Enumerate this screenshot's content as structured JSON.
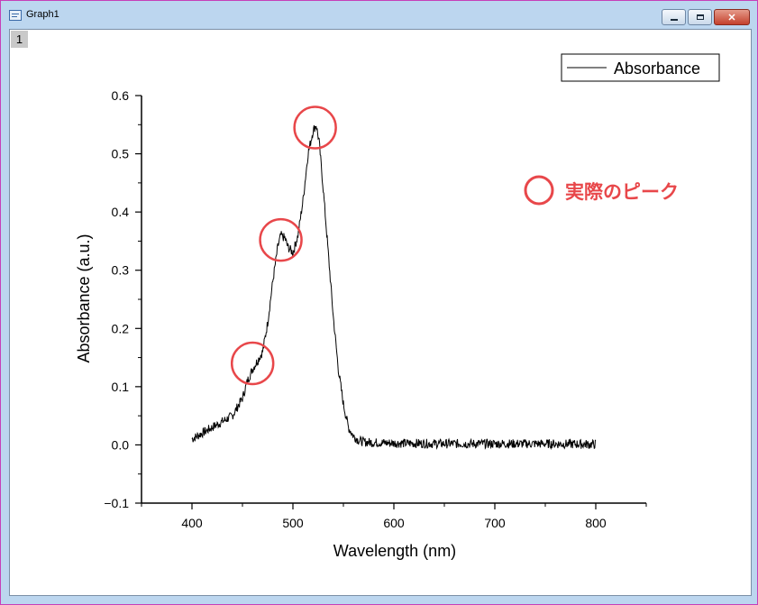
{
  "window": {
    "title": "Graph1"
  },
  "layer_tab": {
    "label": "1"
  },
  "legend": {
    "label": "Absorbance"
  },
  "annotation": {
    "label": "実際のピーク"
  },
  "colors": {
    "highlight": "#e8474a",
    "line": "#000000",
    "titlebar": "#bcd6ef"
  },
  "icons": {
    "app": "graph-window-icon",
    "minimize": "minimize-icon",
    "maximize": "maximize-icon",
    "close": "close-icon"
  },
  "chart_data": {
    "type": "line",
    "xlabel": "Wavelength (nm)",
    "ylabel": "Absorbance (a.u.)",
    "xlim": [
      350,
      850
    ],
    "ylim": [
      -0.1,
      0.6
    ],
    "x_ticks": [
      400,
      500,
      600,
      700,
      800
    ],
    "y_ticks": [
      -0.1,
      0.0,
      0.1,
      0.2,
      0.3,
      0.4,
      0.5,
      0.6
    ],
    "y_tick_labels": [
      "−0.1",
      "0.0",
      "0.1",
      "0.2",
      "0.3",
      "0.4",
      "0.5",
      "0.6"
    ],
    "grid": false,
    "legend_position": "top-right",
    "series": [
      {
        "name": "Absorbance",
        "x": [
          400,
          410,
          420,
          430,
          440,
          450,
          455,
          460,
          465,
          470,
          475,
          480,
          485,
          488,
          492,
          495,
          500,
          505,
          510,
          515,
          520,
          523,
          526,
          530,
          535,
          540,
          545,
          550,
          555,
          560,
          565,
          570,
          580,
          600,
          650,
          700,
          750,
          800
        ],
        "y": [
          0.01,
          0.02,
          0.03,
          0.04,
          0.05,
          0.08,
          0.11,
          0.13,
          0.145,
          0.16,
          0.21,
          0.28,
          0.34,
          0.36,
          0.355,
          0.34,
          0.33,
          0.36,
          0.42,
          0.5,
          0.54,
          0.55,
          0.52,
          0.44,
          0.33,
          0.22,
          0.13,
          0.07,
          0.03,
          0.015,
          0.008,
          0.005,
          0.004,
          0.003,
          0.002,
          0.002,
          0.002,
          0.001
        ]
      }
    ],
    "highlighted_peaks": [
      {
        "x": 460,
        "y": 0.14
      },
      {
        "x": 488,
        "y": 0.352
      },
      {
        "x": 522,
        "y": 0.545
      }
    ]
  }
}
